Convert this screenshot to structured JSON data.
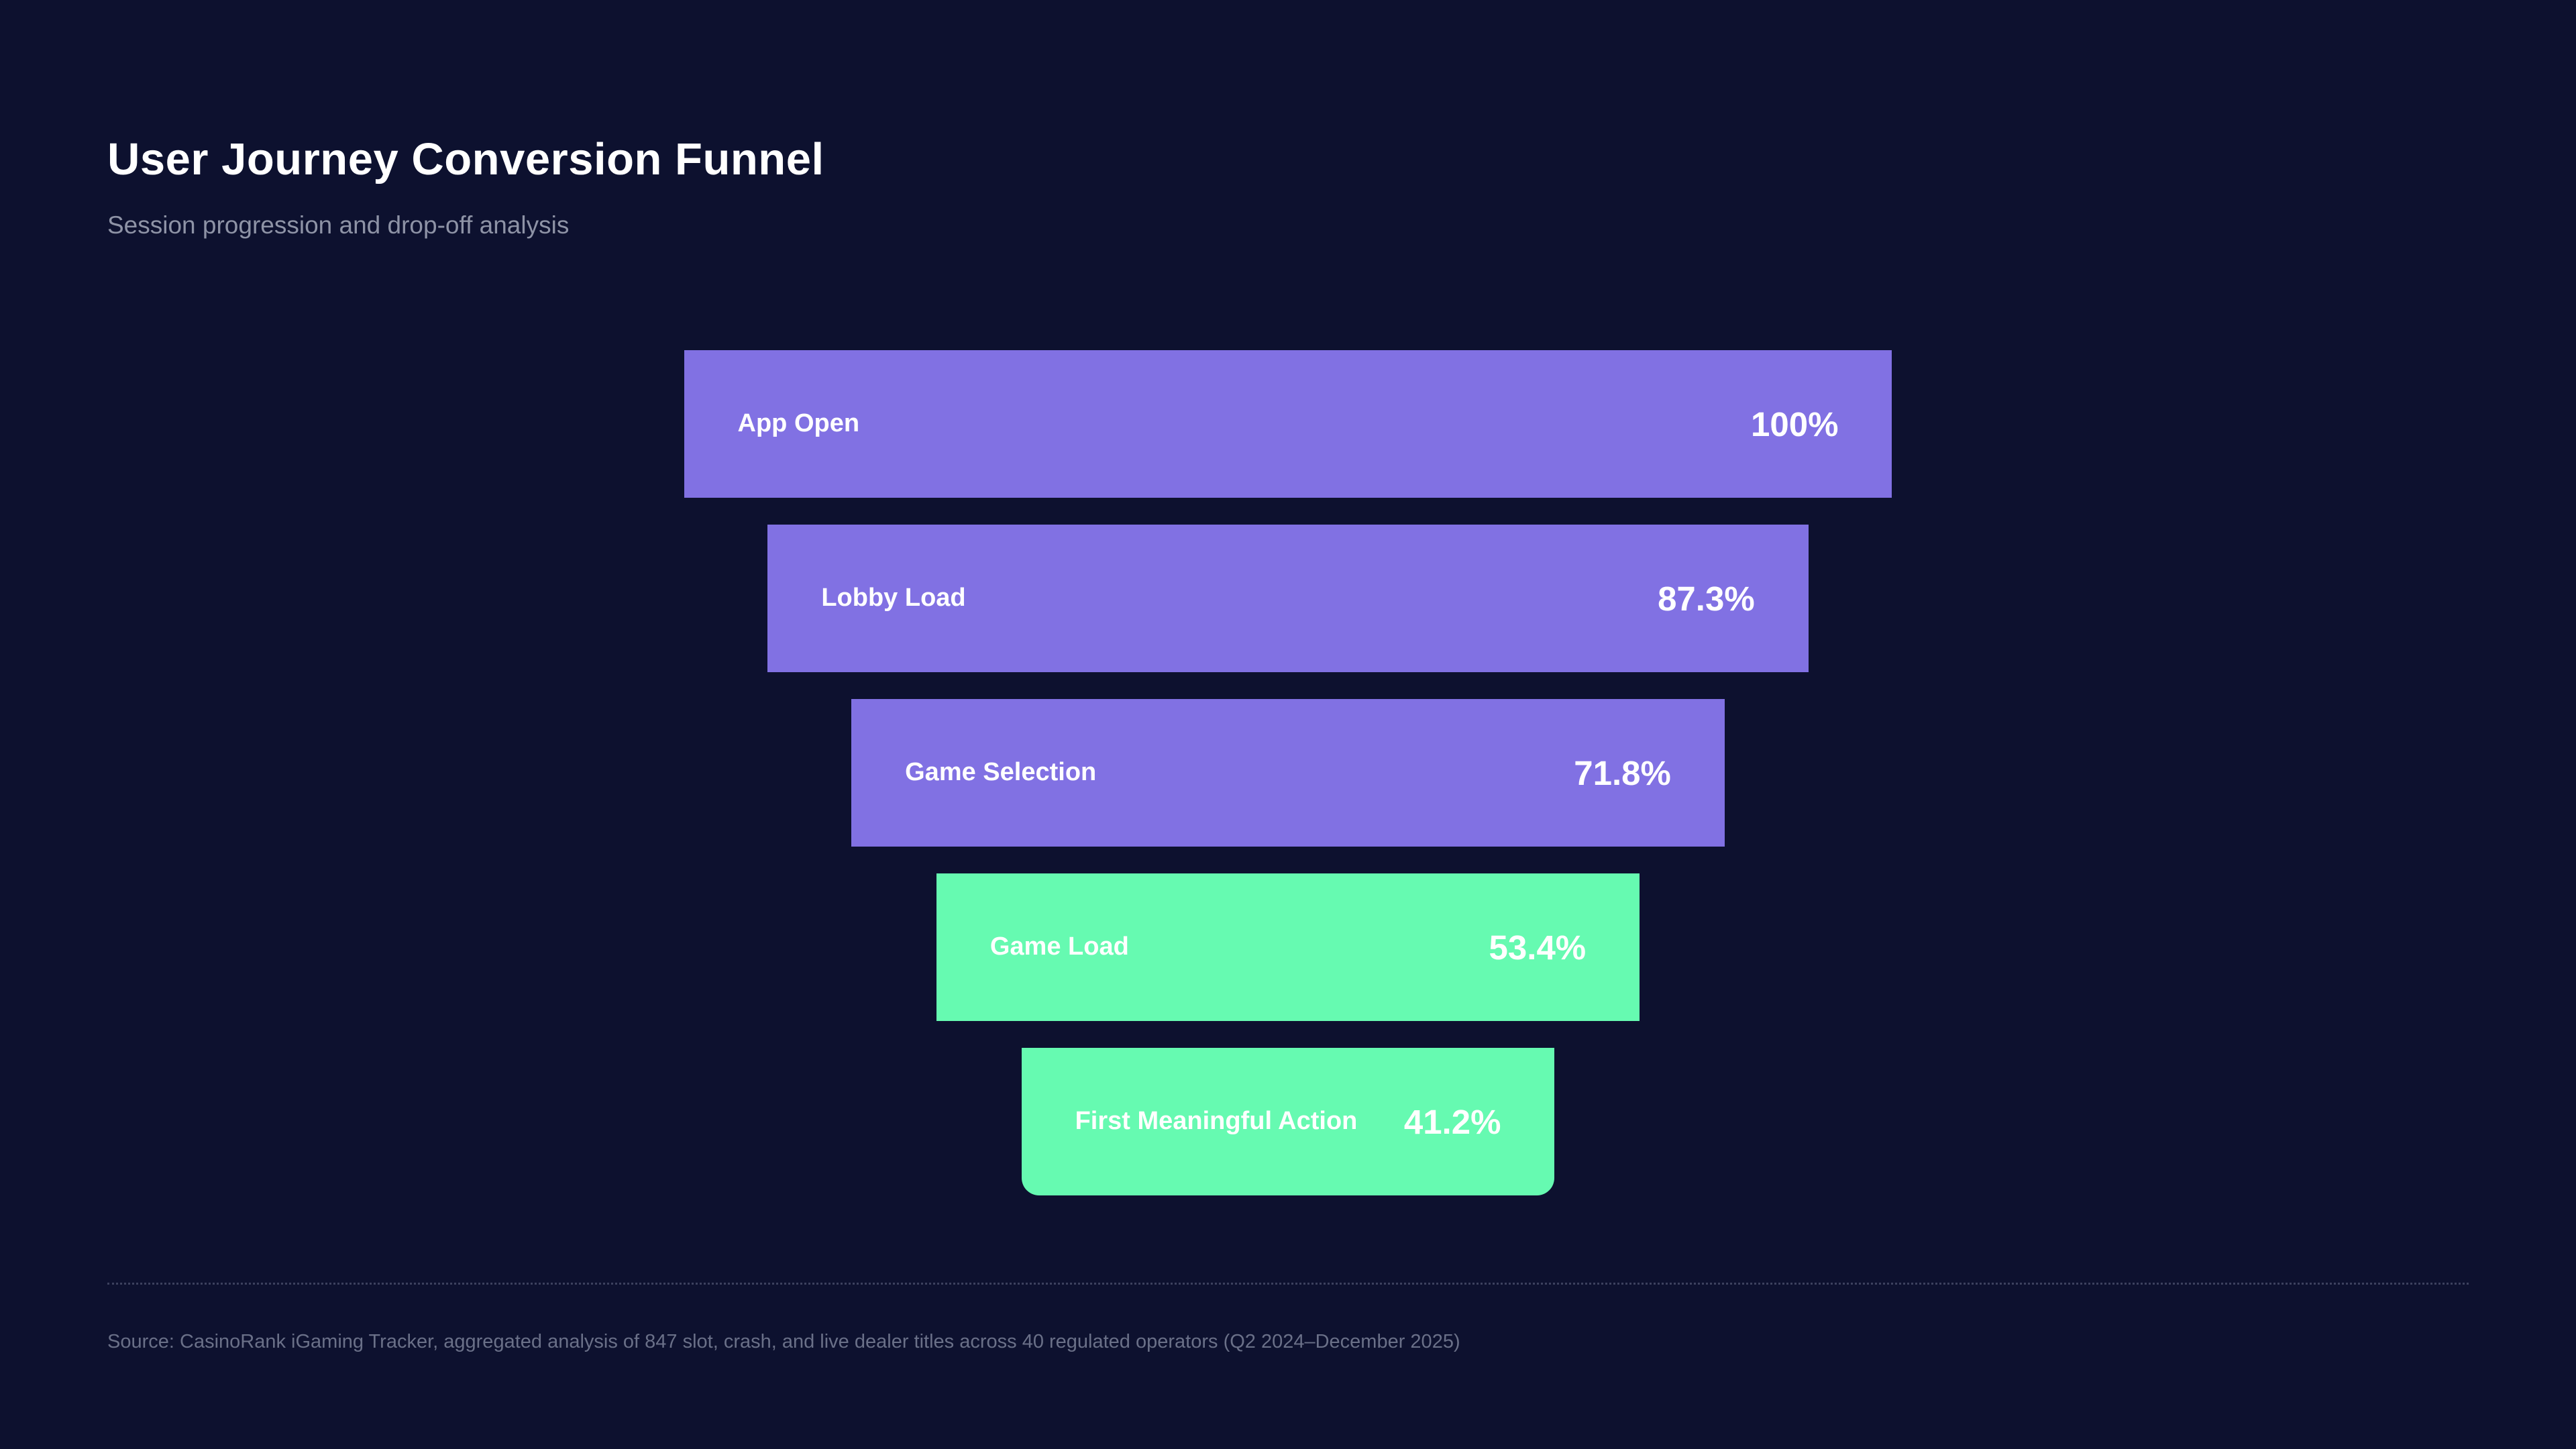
{
  "page": {
    "title": "User Journey Conversion Funnel",
    "subtitle": "Session progression and drop-off analysis",
    "source_note": "Source: CasinoRank iGaming Tracker, aggregated analysis of 847 slot, crash, and live dealer titles across 40 regulated operators (Q2 2024–December 2025)",
    "colors": {
      "background": "#0D112F",
      "title_text": "#FFFFFF",
      "subtitle_text": "#8E93A6",
      "source_text": "#6A7088",
      "funnel_purple": "#8171E3",
      "funnel_green": "#66FAB1",
      "bar_text": "#FFFFFF"
    }
  },
  "chart_data": {
    "type": "funnel",
    "title": "User Journey Conversion Funnel",
    "subtitle": "Session progression and drop-off analysis",
    "stages": [
      {
        "label": "App Open",
        "value": 100,
        "value_label": "100%",
        "color": "#8171E3",
        "width_pct": 46.9
      },
      {
        "label": "Lobby Load",
        "value": 87.3,
        "value_label": "87.3%",
        "color": "#8171E3",
        "width_pct": 40.4
      },
      {
        "label": "Game Selection",
        "value": 71.8,
        "value_label": "71.8%",
        "color": "#8171E3",
        "width_pct": 33.9
      },
      {
        "label": "Game Load",
        "value": 53.4,
        "value_label": "53.4%",
        "color": "#66FAB1",
        "width_pct": 27.3
      },
      {
        "label": "First Meaningful Action",
        "value": 41.2,
        "value_label": "41.2%",
        "color": "#66FAB1",
        "width_pct": 20.7
      }
    ],
    "layout": {
      "align": "center",
      "orientation": "descending",
      "value_unit": "%",
      "legend": false,
      "grid": false,
      "label_position": "inside-left",
      "value_position": "inside-right"
    }
  }
}
